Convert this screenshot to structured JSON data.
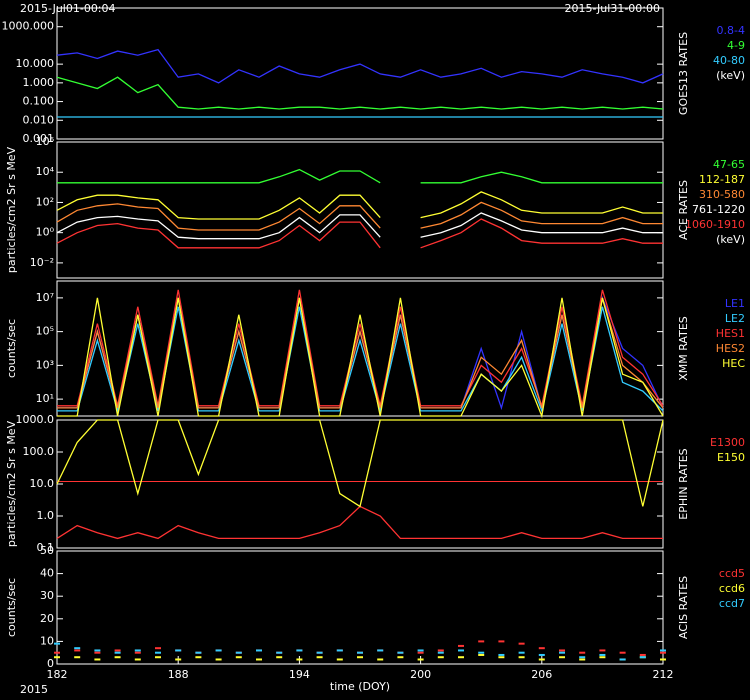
{
  "chart_data": [
    {
      "type": "line",
      "title": "GOES13 RATES",
      "log": true,
      "annotations": [
        "2015-Jul01-00:04",
        "2015-Jul31-00:00"
      ],
      "legend_unit": "(keV)",
      "xlim": [
        182,
        212
      ],
      "x": [
        182,
        183,
        184,
        185,
        186,
        187,
        188,
        189,
        190,
        191,
        192,
        193,
        194,
        195,
        196,
        197,
        198,
        199,
        200,
        201,
        202,
        203,
        204,
        205,
        206,
        207,
        208,
        209,
        210,
        211,
        212
      ],
      "ylim": [
        0.001,
        10000
      ],
      "yticks": [
        {
          "value": 0.001,
          "label": "0.001"
        },
        {
          "value": 0.01,
          "label": "0.010"
        },
        {
          "value": 0.1,
          "label": "0.100"
        },
        {
          "value": 1,
          "label": "1.000"
        },
        {
          "value": 10,
          "label": "10.000"
        },
        {
          "value": 1000,
          "label": "1000.000"
        }
      ],
      "series": [
        {
          "name": "0.8-4",
          "color": "#3333ff",
          "values": [
            30,
            40,
            20,
            50,
            30,
            60,
            2,
            3,
            1,
            5,
            2,
            8,
            3,
            2,
            5,
            10,
            3,
            2,
            5,
            2,
            3,
            6,
            2,
            4,
            3,
            2,
            5,
            3,
            2,
            1,
            3
          ]
        },
        {
          "name": "4-9",
          "color": "#33ff33",
          "values": [
            2,
            1,
            0.5,
            2,
            0.3,
            0.8,
            0.05,
            0.04,
            0.05,
            0.04,
            0.05,
            0.04,
            0.05,
            0.05,
            0.04,
            0.05,
            0.04,
            0.05,
            0.04,
            0.05,
            0.04,
            0.05,
            0.04,
            0.05,
            0.04,
            0.05,
            0.04,
            0.05,
            0.04,
            0.05,
            0.04
          ]
        },
        {
          "name": "40-80",
          "color": "#33ccff",
          "values": [
            0.015,
            0.015,
            0.015,
            0.015,
            0.015,
            0.015,
            0.015,
            0.015,
            0.015,
            0.015,
            0.015,
            0.015,
            0.015,
            0.015,
            0.015,
            0.015,
            0.015,
            0.015,
            0.015,
            0.015,
            0.015,
            0.015,
            0.015,
            0.015,
            0.015,
            0.015,
            0.015,
            0.015,
            0.015,
            0.015,
            0.015
          ]
        }
      ]
    },
    {
      "type": "line",
      "title": "ACE RATES",
      "log": true,
      "ylabel": "particles/cm2 Sr s MeV",
      "legend_unit": "(keV)",
      "xlim": [
        182,
        212
      ],
      "x": [
        182,
        183,
        184,
        185,
        186,
        187,
        188,
        189,
        190,
        191,
        192,
        193,
        194,
        195,
        196,
        197,
        198,
        199,
        200,
        201,
        202,
        203,
        204,
        205,
        206,
        207,
        208,
        209,
        210,
        211,
        212
      ],
      "ylim": [
        0.001,
        1000000
      ],
      "yticks": [
        {
          "value": 0.01,
          "label": "10⁻²"
        },
        {
          "value": 1,
          "label": "10⁰"
        },
        {
          "value": 100,
          "label": "10²"
        },
        {
          "value": 10000,
          "label": "10⁴"
        },
        {
          "value": 1000000,
          "label": "10⁶"
        }
      ],
      "series": [
        {
          "name": "47-65",
          "color": "#33ff33",
          "values": [
            2000,
            2000,
            2000,
            2000,
            2000,
            2000,
            2000,
            2000,
            2000,
            2000,
            2000,
            5000,
            15000,
            3000,
            12000,
            12000,
            2000,
            null,
            2000,
            2000,
            2000,
            5000,
            10000,
            5000,
            2000,
            2000,
            2000,
            2000,
            2000,
            2000,
            2000
          ]
        },
        {
          "name": "112-187",
          "color": "#ffff33",
          "values": [
            30,
            150,
            300,
            300,
            200,
            150,
            10,
            8,
            8,
            8,
            8,
            30,
            200,
            20,
            300,
            300,
            10,
            null,
            10,
            20,
            80,
            500,
            150,
            30,
            20,
            20,
            20,
            20,
            50,
            20,
            20
          ]
        },
        {
          "name": "310-580",
          "color": "#ff8833",
          "values": [
            5,
            30,
            60,
            80,
            50,
            40,
            2,
            1.5,
            1.5,
            1.5,
            1.5,
            5,
            40,
            4,
            60,
            60,
            2,
            null,
            2,
            4,
            15,
            100,
            30,
            6,
            4,
            4,
            4,
            4,
            10,
            4,
            4
          ]
        },
        {
          "name": "761-1220",
          "color": "#ffffff",
          "values": [
            1,
            5,
            10,
            12,
            8,
            6,
            0.5,
            0.4,
            0.4,
            0.4,
            0.4,
            1,
            10,
            1,
            15,
            15,
            0.5,
            null,
            0.5,
            1,
            3,
            20,
            6,
            1.5,
            1,
            1,
            1,
            1,
            2,
            1,
            1
          ]
        },
        {
          "name": "1060-1910",
          "color": "#ff3333",
          "values": [
            0.2,
            1,
            3,
            4,
            2,
            1.5,
            0.1,
            0.1,
            0.1,
            0.1,
            0.1,
            0.3,
            3,
            0.3,
            5,
            5,
            0.1,
            null,
            0.1,
            0.3,
            1,
            8,
            2,
            0.3,
            0.2,
            0.2,
            0.2,
            0.2,
            0.4,
            0.2,
            0.2
          ]
        }
      ]
    },
    {
      "type": "line",
      "title": "XMM RATES",
      "log": true,
      "ylabel": "counts/sec",
      "xlim": [
        182,
        212
      ],
      "x": [
        182,
        183,
        184,
        185,
        186,
        187,
        188,
        189,
        190,
        191,
        192,
        193,
        194,
        195,
        196,
        197,
        198,
        199,
        200,
        201,
        202,
        203,
        204,
        205,
        206,
        207,
        208,
        209,
        210,
        211,
        212
      ],
      "ylim": [
        1,
        100000000
      ],
      "yticks": [
        {
          "value": 10,
          "label": "10¹"
        },
        {
          "value": 1000,
          "label": "10³"
        },
        {
          "value": 100000,
          "label": "10⁵"
        },
        {
          "value": 10000000,
          "label": "10⁷"
        }
      ],
      "series": [
        {
          "name": "LE1",
          "color": "#3333ff",
          "values": [
            3,
            3,
            100000,
            3,
            1000000,
            3,
            10000000,
            3,
            3,
            100000,
            3,
            3,
            10000000,
            3,
            3,
            100000,
            3,
            1000000,
            3,
            3,
            3,
            10000,
            3,
            100000,
            3,
            1000000,
            3,
            10000000,
            10000,
            1000,
            3
          ]
        },
        {
          "name": "LE2",
          "color": "#33ccff",
          "values": [
            2,
            2,
            30000,
            2,
            300000,
            2,
            3000000,
            2,
            2,
            30000,
            2,
            2,
            3000000,
            2,
            2,
            30000,
            2,
            300000,
            2,
            2,
            2,
            300,
            30,
            3000,
            2,
            300000,
            2,
            3000000,
            100,
            30,
            2
          ]
        },
        {
          "name": "HES1",
          "color": "#ff3333",
          "values": [
            4,
            4,
            300000,
            4,
            3000000,
            4,
            30000000,
            4,
            4,
            300000,
            4,
            4,
            30000000,
            4,
            4,
            300000,
            4,
            3000000,
            4,
            4,
            4,
            1000,
            100,
            10000,
            4,
            3000000,
            4,
            30000000,
            3000,
            300,
            4
          ]
        },
        {
          "name": "HES2",
          "color": "#ff8833",
          "values": [
            3,
            3,
            100000,
            3,
            1000000,
            3,
            10000000,
            3,
            3,
            100000,
            3,
            3,
            10000000,
            3,
            3,
            100000,
            3,
            1000000,
            3,
            3,
            3,
            3000,
            300,
            30000,
            3,
            1000000,
            3,
            10000000,
            1000,
            100,
            3
          ]
        },
        {
          "name": "HEC",
          "color": "#ffff33",
          "values": [
            1,
            1,
            10000000,
            1,
            1000000,
            1,
            10000000,
            1,
            1,
            1000000,
            1,
            1,
            10000000,
            1,
            1,
            1000000,
            1,
            10000000,
            1,
            1,
            1,
            300,
            30,
            1000,
            1,
            10000000,
            1,
            10000000,
            300,
            100,
            1
          ]
        }
      ]
    },
    {
      "type": "line",
      "title": "EPHIN RATES",
      "log": true,
      "ylabel": "particles/cm2 Sr s MeV",
      "reference_line": 12,
      "reference_color": "#ff3333",
      "xlim": [
        182,
        212
      ],
      "x": [
        182,
        183,
        184,
        185,
        186,
        187,
        188,
        189,
        190,
        191,
        192,
        193,
        194,
        195,
        196,
        197,
        198,
        199,
        200,
        201,
        202,
        203,
        204,
        205,
        206,
        207,
        208,
        209,
        210,
        211,
        212
      ],
      "ylim": [
        0.1,
        1000
      ],
      "yticks": [
        0.1,
        {
          "value": 1,
          "label": "1.0"
        },
        {
          "value": 10,
          "label": "10.0"
        },
        {
          "value": 100,
          "label": "100.0"
        },
        {
          "value": 1000,
          "label": "1000.0"
        }
      ],
      "series": [
        {
          "name": "E1300",
          "color": "#ff3333",
          "values": [
            0.2,
            0.5,
            0.3,
            0.2,
            0.3,
            0.2,
            0.5,
            0.3,
            0.2,
            0.2,
            0.2,
            0.2,
            0.2,
            0.3,
            0.5,
            2,
            1,
            0.2,
            0.2,
            0.2,
            0.2,
            0.2,
            0.2,
            0.3,
            0.2,
            0.2,
            0.2,
            0.3,
            0.2,
            0.2,
            0.2
          ]
        },
        {
          "name": "E150",
          "color": "#ffff33",
          "values": [
            10,
            200,
            1000,
            1000,
            5,
            1000,
            1000,
            20,
            1000,
            1000,
            1000,
            1000,
            1000,
            1000,
            5,
            2,
            1000,
            1000,
            1000,
            1000,
            1000,
            1000,
            1000,
            1000,
            1000,
            1000,
            1000,
            1000,
            1000,
            2,
            1000
          ]
        }
      ]
    },
    {
      "type": "scatter",
      "title": "ACIS RATES",
      "log": false,
      "ylabel": "counts/sec",
      "xlabel": "time (DOY)",
      "annotations": [
        "2015"
      ],
      "xlim": [
        182,
        212
      ],
      "xticks": [
        182,
        188,
        194,
        200,
        206,
        212
      ],
      "x": [
        182,
        183,
        184,
        185,
        186,
        187,
        188,
        189,
        190,
        191,
        192,
        193,
        194,
        195,
        196,
        197,
        198,
        199,
        200,
        201,
        202,
        203,
        204,
        205,
        206,
        207,
        208,
        209,
        210,
        211,
        212
      ],
      "ylim": [
        0,
        50
      ],
      "yticks": [
        0,
        10,
        20,
        30,
        40,
        50
      ],
      "series": [
        {
          "name": "ccd5",
          "color": "#ff3333",
          "values": [
            5,
            6,
            5,
            6,
            5,
            7,
            6,
            5,
            6,
            5,
            6,
            5,
            6,
            5,
            6,
            5,
            6,
            5,
            5,
            6,
            8,
            10,
            10,
            9,
            7,
            6,
            5,
            6,
            5,
            4,
            5
          ]
        },
        {
          "name": "ccd6",
          "color": "#ffff33",
          "values": [
            3,
            3,
            2,
            3,
            2,
            3,
            2,
            3,
            2,
            3,
            2,
            3,
            2,
            3,
            2,
            3,
            2,
            3,
            2,
            3,
            3,
            4,
            3,
            3,
            2,
            3,
            2,
            3,
            2,
            3,
            2
          ]
        },
        {
          "name": "ccd7",
          "color": "#33ccff",
          "values": [
            9,
            7,
            6,
            5,
            6,
            5,
            6,
            5,
            6,
            5,
            6,
            5,
            6,
            5,
            6,
            5,
            6,
            5,
            6,
            5,
            6,
            5,
            4,
            5,
            4,
            5,
            3,
            4,
            2,
            3,
            6
          ]
        }
      ]
    }
  ]
}
